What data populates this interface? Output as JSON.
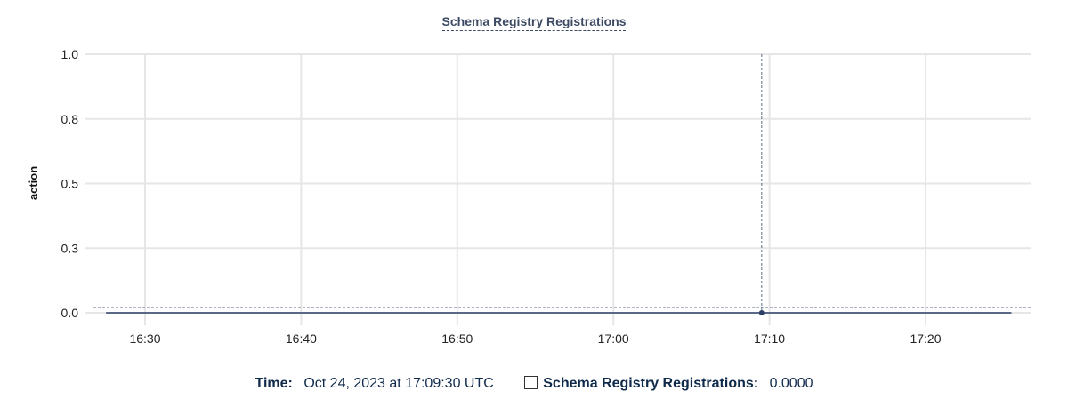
{
  "chart_data": {
    "type": "line",
    "title": "Schema Registry Registrations",
    "ylabel": "action",
    "xlabel": "",
    "ylim": [
      0,
      1
    ],
    "yticks": [
      0,
      0.25,
      0.5,
      0.75,
      1
    ],
    "ytick_labels": [
      "0.0",
      "0.3",
      "0.5",
      "0.8",
      "1.0"
    ],
    "xlim": [
      "16:26:45",
      "17:26:45"
    ],
    "xticks": [
      "16:30",
      "16:40",
      "16:50",
      "17:00",
      "17:10",
      "17:20"
    ],
    "grid": true,
    "series": [
      {
        "name": "Schema Registry Registrations",
        "color": "#2b3f66",
        "x": [
          "16:27:30",
          "17:25:30"
        ],
        "y": [
          0,
          0
        ]
      }
    ],
    "hover": {
      "x": "17:09:30",
      "y": 0
    }
  },
  "legend": {
    "time_label": "Time:",
    "time_value": "Oct 24, 2023 at 17:09:30 UTC",
    "series_label": "Schema Registry Registrations:",
    "series_value": "0.0000"
  }
}
